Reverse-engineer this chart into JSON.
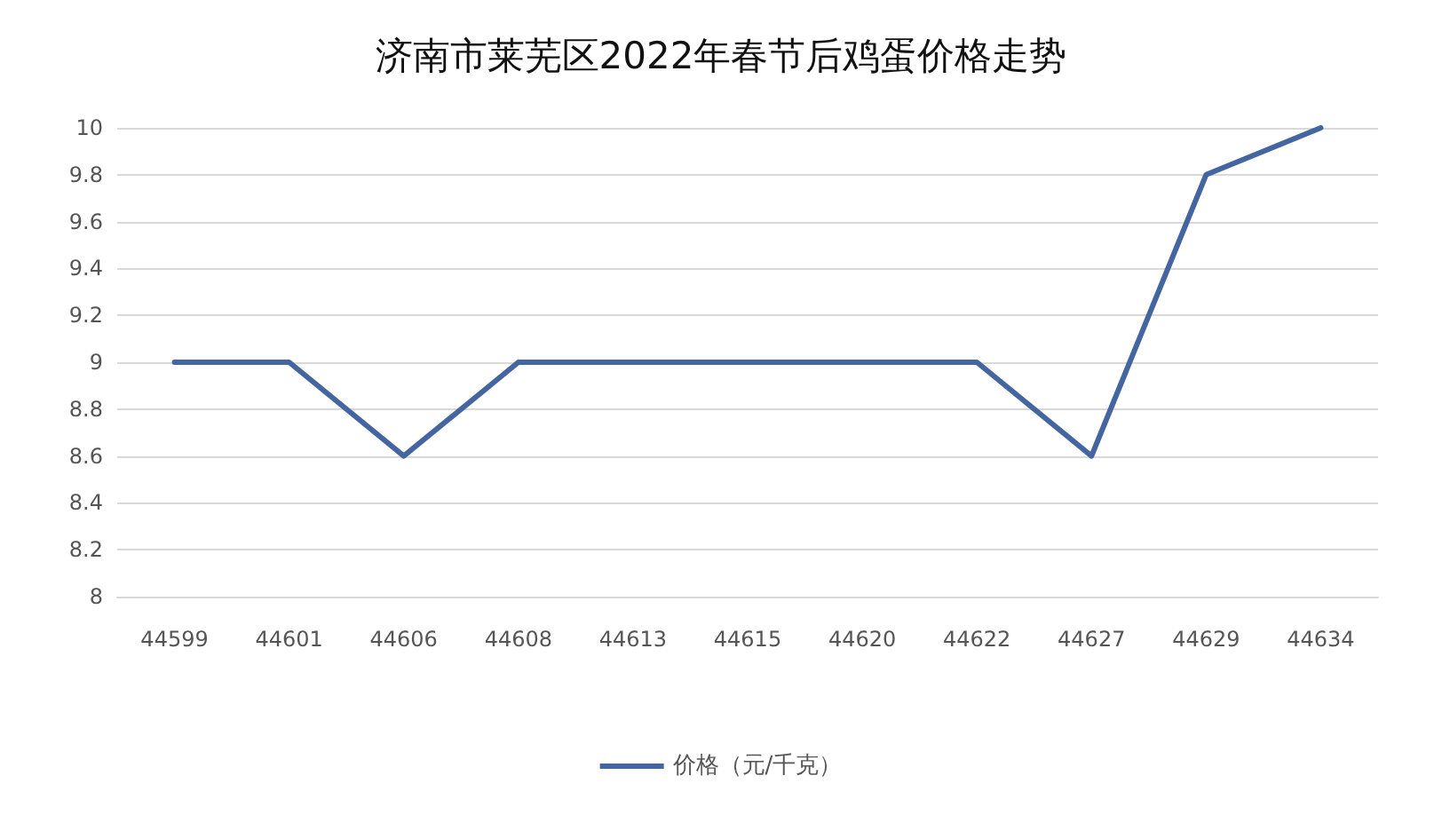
{
  "chart_data": {
    "type": "line",
    "title": "济南市莱芜区2022年春节后鸡蛋价格走势",
    "categories": [
      "44599",
      "44601",
      "44606",
      "44608",
      "44613",
      "44615",
      "44620",
      "44622",
      "44627",
      "44629",
      "44634"
    ],
    "series": [
      {
        "name": "价格（元/千克）",
        "color": "#44659f",
        "values": [
          9,
          9,
          8.6,
          9,
          9,
          9,
          9,
          9,
          8.6,
          9.8,
          10
        ]
      }
    ],
    "ylim": [
      8,
      10
    ],
    "yticks": [
      8,
      8.2,
      8.4,
      8.6,
      8.8,
      9,
      9.2,
      9.4,
      9.6,
      9.8,
      10
    ],
    "grid": "y",
    "legend": "bottom",
    "marker": "none",
    "line_style": "solid"
  }
}
